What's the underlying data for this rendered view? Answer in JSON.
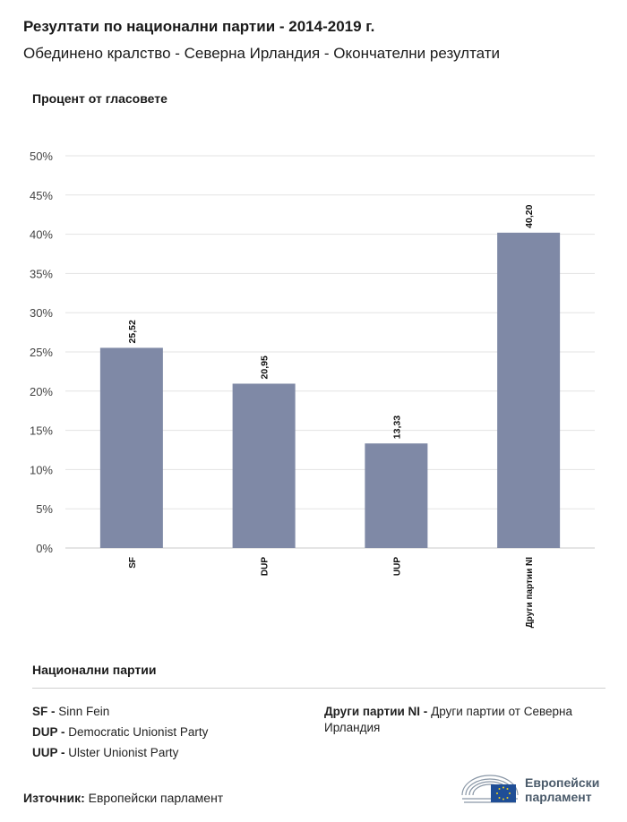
{
  "header": {
    "title": "Резултати по национални партии - 2014-2019 г.",
    "subtitle": "Обединено кралство - Северна Ирландия - Окончателни резултати"
  },
  "axis": {
    "ylabel": "Процент от гласовете"
  },
  "chart_data": {
    "type": "bar",
    "title": "Резултати по национални партии - 2014-2019 г.",
    "subtitle": "Обединено кралство - Северна Ирландия - Окончателни резултати",
    "ylabel": "Процент от гласовете",
    "xlabel": "",
    "categories": [
      "SF",
      "DUP",
      "UUP",
      "Други партии NI"
    ],
    "values": [
      25.52,
      20.95,
      13.33,
      40.2
    ],
    "value_labels": [
      "25,52",
      "20,95",
      "13,33",
      "40,20"
    ],
    "ylim": [
      0,
      50
    ],
    "yticks": [
      0,
      5,
      10,
      15,
      20,
      25,
      30,
      35,
      40,
      45,
      50
    ],
    "ytick_labels": [
      "0%",
      "5%",
      "10%",
      "15%",
      "20%",
      "25%",
      "30%",
      "35%",
      "40%",
      "45%",
      "50%"
    ],
    "grid": true,
    "bar_color": "#7f89a6"
  },
  "legend": {
    "title": "Национални партии",
    "items": [
      {
        "abbr": "SF -",
        "name": "Sinn Fein"
      },
      {
        "abbr": "DUP -",
        "name": "Democratic Unionist Party"
      },
      {
        "abbr": "UUP -",
        "name": "Ulster Unionist Party"
      },
      {
        "abbr": "Други партии NI -",
        "name": "Други партии от Северна Ирландия"
      }
    ]
  },
  "footer": {
    "source_label": "Източник:",
    "source_value": "Европейски парламент",
    "logo_line1": "Европейски",
    "logo_line2": "парламент"
  },
  "colors": {
    "bar": "#7f89a6",
    "grid": "#e3e3e3",
    "axis": "#c8c8c8",
    "logo_blue": "#1f4e96",
    "logo_star": "#f2d21c"
  }
}
